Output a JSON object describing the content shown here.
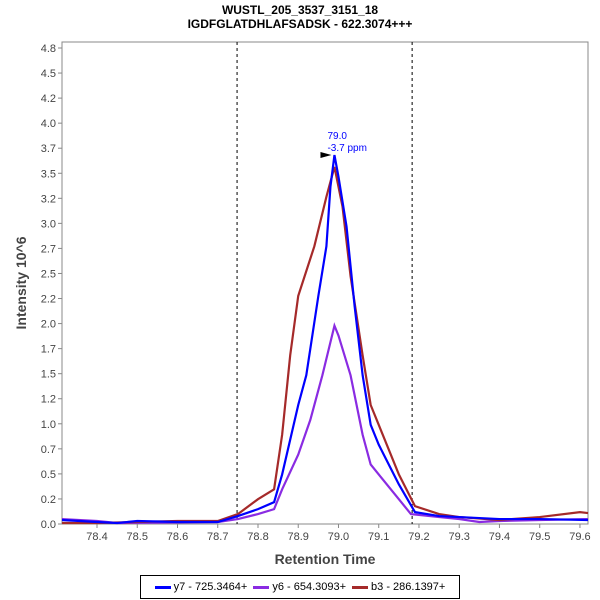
{
  "chart_data": {
    "type": "line",
    "title": "WUSTL_205_3537_3151_18",
    "subtitle": "IGDFGLATDHLAFSADSK - 622.3074+++",
    "xlabel": "Retention Time",
    "ylabel": "Intensity 10^6",
    "xlim": [
      78.313,
      79.62
    ],
    "ylim": [
      0,
      4.86
    ],
    "xticks": [
      "78.4",
      "78.5",
      "78.6",
      "78.7",
      "78.8",
      "78.9",
      "79.0",
      "79.1",
      "79.2",
      "79.3",
      "79.4",
      "79.5",
      "79.6"
    ],
    "yticks": [
      "0.0",
      "0.2",
      "0.5",
      "0.7",
      "1.0",
      "1.2",
      "1.5",
      "1.7",
      "2.0",
      "2.2",
      "2.5",
      "2.7",
      "3.0",
      "3.2",
      "3.5",
      "3.7",
      "4.0",
      "4.2",
      "4.5",
      "4.8"
    ],
    "boundaries": [
      78.748,
      79.183
    ],
    "annotation": {
      "x": 78.99,
      "y": 3.72,
      "line1": "79.0",
      "line2": "-3.7 ppm"
    },
    "legend_position": "bottom",
    "series": [
      {
        "name": "y7 - 725.3464+",
        "color": "#0000ff",
        "x": [
          78.313,
          78.4,
          78.45,
          78.5,
          78.6,
          78.7,
          78.75,
          78.8,
          78.84,
          78.86,
          78.9,
          78.92,
          78.95,
          78.97,
          78.98,
          78.99,
          79.0,
          79.02,
          79.04,
          79.06,
          79.08,
          79.1,
          79.15,
          79.19,
          79.25,
          79.3,
          79.4,
          79.5,
          79.62
        ],
        "y": [
          0.04,
          0.02,
          0.01,
          0.03,
          0.02,
          0.02,
          0.08,
          0.15,
          0.22,
          0.5,
          1.2,
          1.5,
          2.3,
          2.8,
          3.4,
          3.72,
          3.5,
          3.0,
          2.2,
          1.5,
          1.0,
          0.8,
          0.4,
          0.12,
          0.08,
          0.07,
          0.05,
          0.05,
          0.04
        ]
      },
      {
        "name": "y6 - 654.3093+",
        "color": "#8a2be2",
        "x": [
          78.313,
          78.4,
          78.45,
          78.7,
          78.75,
          78.8,
          78.84,
          78.86,
          78.9,
          78.93,
          78.96,
          78.99,
          79.0,
          79.03,
          79.06,
          79.08,
          79.1,
          79.15,
          79.18,
          79.25,
          79.3,
          79.35,
          79.4,
          79.5,
          79.62
        ],
        "y": [
          0.05,
          0.03,
          0.01,
          0.02,
          0.05,
          0.1,
          0.15,
          0.35,
          0.7,
          1.05,
          1.5,
          2.0,
          1.9,
          1.5,
          0.9,
          0.6,
          0.5,
          0.25,
          0.1,
          0.07,
          0.05,
          0.02,
          0.03,
          0.04,
          0.05
        ]
      },
      {
        "name": "b3 - 286.1397+",
        "color": "#a52a2a",
        "x": [
          78.313,
          78.4,
          78.5,
          78.6,
          78.7,
          78.75,
          78.8,
          78.84,
          78.86,
          78.88,
          78.9,
          78.94,
          78.97,
          78.99,
          79.01,
          79.03,
          79.06,
          79.08,
          79.1,
          79.15,
          79.19,
          79.25,
          79.3,
          79.4,
          79.5,
          79.6,
          79.62
        ],
        "y": [
          0.01,
          0.01,
          0.02,
          0.03,
          0.03,
          0.1,
          0.25,
          0.35,
          0.9,
          1.7,
          2.3,
          2.8,
          3.3,
          3.6,
          3.2,
          2.5,
          1.7,
          1.2,
          1.0,
          0.5,
          0.18,
          0.1,
          0.07,
          0.04,
          0.07,
          0.12,
          0.11
        ]
      }
    ]
  }
}
